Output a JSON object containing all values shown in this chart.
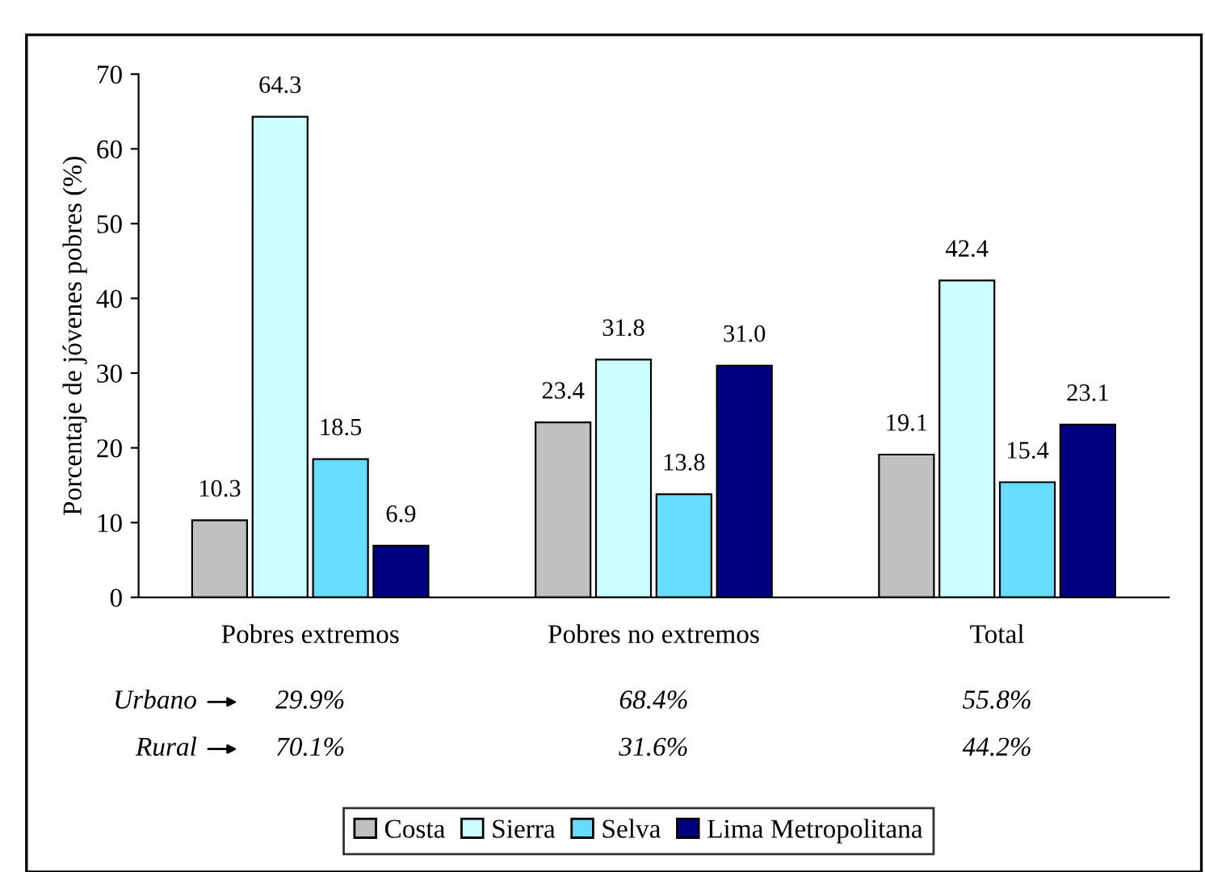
{
  "chart_data": {
    "type": "bar",
    "ylabel": "Porcentaje de jóvenes pobres (%)",
    "categories": [
      "Pobres extremos",
      "Pobres no extremos",
      "Total"
    ],
    "series": [
      {
        "name": "Costa",
        "color": "#c0c0c0",
        "values": [
          10.3,
          23.4,
          19.1
        ],
        "value_labels": [
          "10.3",
          "23.4",
          "19.1"
        ]
      },
      {
        "name": "Sierra",
        "color": "#ccffff",
        "values": [
          64.3,
          31.8,
          42.4
        ],
        "value_labels": [
          "64.3",
          "31.8",
          "42.4"
        ]
      },
      {
        "name": "Selva",
        "color": "#66ddff",
        "values": [
          18.5,
          13.8,
          15.4
        ],
        "value_labels": [
          "18.5",
          "13.8",
          "15.4"
        ]
      },
      {
        "name": "Lima Metropolitana",
        "color": "#000080",
        "values": [
          6.9,
          31.0,
          23.1
        ],
        "value_labels": [
          "6.9",
          "31.0",
          "23.1"
        ]
      }
    ],
    "ylim": [
      0,
      70
    ],
    "yticks": [
      0,
      10,
      20,
      30,
      40,
      50,
      60,
      70
    ],
    "grid": false,
    "legend": "bottom",
    "annotations": [
      "Urbano",
      "29.9%",
      "68.4%",
      "55.8%",
      "Rural",
      "70.1%",
      "31.6%",
      "44.2%"
    ]
  }
}
